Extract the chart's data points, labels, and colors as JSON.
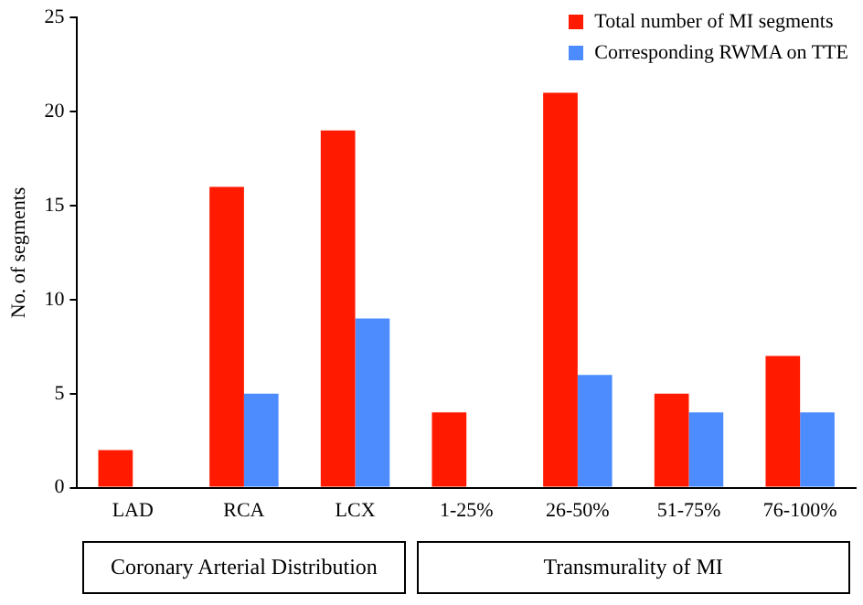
{
  "chart_data": {
    "type": "bar",
    "ylabel": "No. of segments",
    "categories": [
      "LAD",
      "RCA",
      "LCX",
      "1-25%",
      "26-50%",
      "51-75%",
      "76-100%"
    ],
    "series": [
      {
        "name": "Total number of MI segments",
        "color": "#ff1a00",
        "values": [
          2,
          16,
          19,
          4,
          21,
          5,
          7
        ]
      },
      {
        "name": "Corresponding RWMA on TTE",
        "color": "#4d8cff",
        "values": [
          0,
          5,
          9,
          0,
          6,
          4,
          4
        ]
      }
    ],
    "ylim": [
      0,
      25
    ],
    "yticks": [
      0,
      5,
      10,
      15,
      20,
      25
    ],
    "grid": false,
    "legend": "top right",
    "annotations": [
      "Coronary Arterial Distribution",
      "Transmurality of MI"
    ]
  }
}
